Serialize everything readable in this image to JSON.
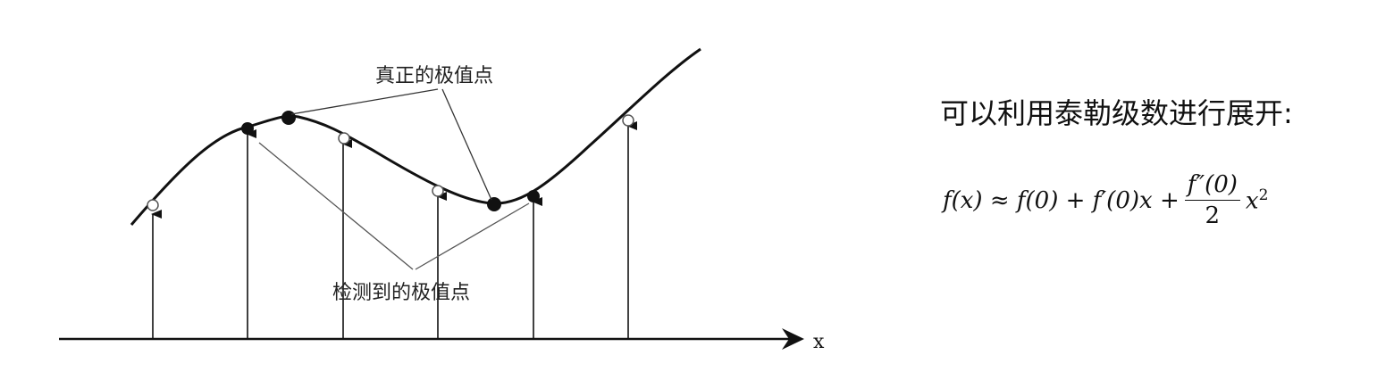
{
  "diagram": {
    "label_true_extrema": "真正的极值点",
    "label_detected_extrema": "检测到的极值点",
    "axis_label": "x"
  },
  "text": {
    "heading": "可以利用泰勒级数进行展开:"
  },
  "formula": {
    "lhs": "f(x) ≈ f(0) + f′(0)x +",
    "frac_num": "f″(0)",
    "frac_den": "2",
    "tail_base": "x",
    "tail_exp": "2"
  }
}
